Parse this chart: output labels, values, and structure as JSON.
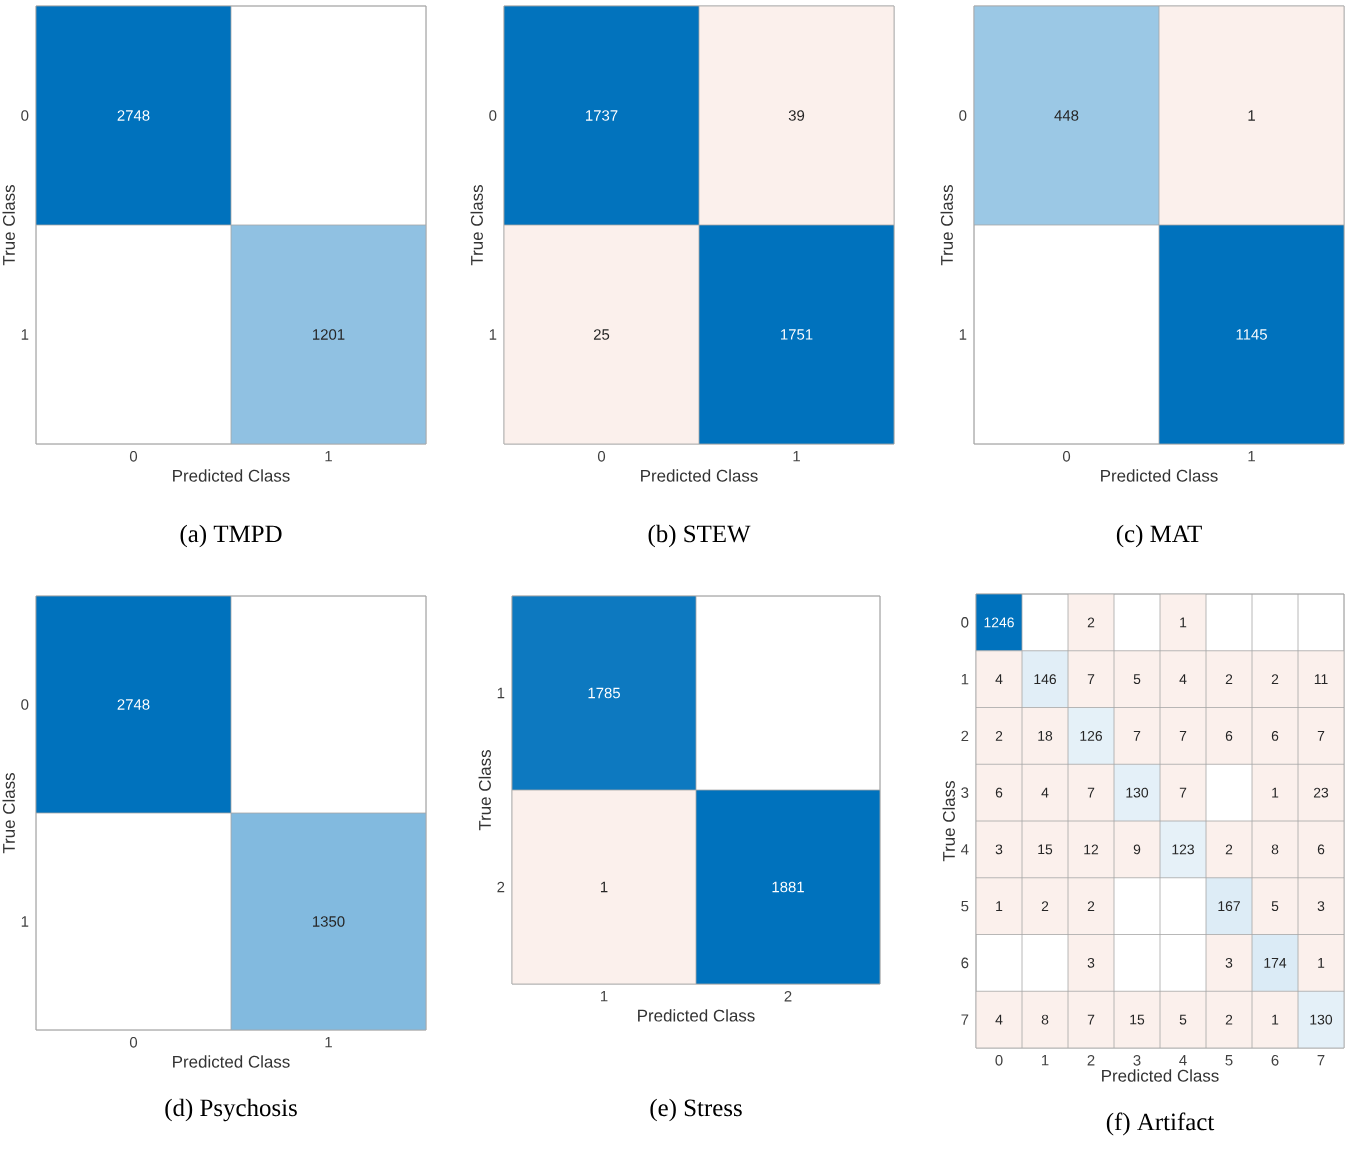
{
  "chart_data": [
    {
      "type": "heatmap",
      "categories": [
        "0",
        "1"
      ],
      "y_categories": [
        "0",
        "1"
      ],
      "xlabel": "Predicted Class",
      "ylabel": "True Class",
      "annotations": [
        "(a) TMPD"
      ],
      "data_labels": true,
      "cells": [
        [
          2748,
          null
        ],
        [
          null,
          1201
        ]
      ]
    },
    {
      "type": "heatmap",
      "categories": [
        "0",
        "1"
      ],
      "y_categories": [
        "0",
        "1"
      ],
      "xlabel": "Predicted Class",
      "ylabel": "True Class",
      "annotations": [
        "(b) STEW"
      ],
      "data_labels": true,
      "cells": [
        [
          1737,
          39
        ],
        [
          25,
          1751
        ]
      ]
    },
    {
      "type": "heatmap",
      "categories": [
        "0",
        "1"
      ],
      "y_categories": [
        "0",
        "1"
      ],
      "xlabel": "Predicted Class",
      "ylabel": "True Class",
      "annotations": [
        "(c) MAT"
      ],
      "data_labels": true,
      "cells": [
        [
          448,
          1
        ],
        [
          null,
          1145
        ]
      ]
    },
    {
      "type": "heatmap",
      "categories": [
        "0",
        "1"
      ],
      "y_categories": [
        "0",
        "1"
      ],
      "xlabel": "Predicted Class",
      "ylabel": "True Class",
      "annotations": [
        "(d) Psychosis"
      ],
      "data_labels": true,
      "cells": [
        [
          2748,
          null
        ],
        [
          null,
          1350
        ]
      ]
    },
    {
      "type": "heatmap",
      "categories": [
        "1",
        "2"
      ],
      "y_categories": [
        "1",
        "2"
      ],
      "xlabel": "Predicted Class",
      "ylabel": "True Class",
      "annotations": [
        "(e) Stress"
      ],
      "data_labels": true,
      "cells": [
        [
          1785,
          null
        ],
        [
          1,
          1881
        ]
      ]
    },
    {
      "type": "heatmap",
      "categories": [
        "0",
        "1",
        "2",
        "3",
        "4",
        "5",
        "6",
        "7"
      ],
      "y_categories": [
        "0",
        "1",
        "2",
        "3",
        "4",
        "5",
        "6",
        "7"
      ],
      "xlabel": "Predicted Class",
      "ylabel": "True Class",
      "annotations": [
        "(f) Artifact"
      ],
      "data_labels": true,
      "cells": [
        [
          1246,
          null,
          2,
          null,
          1,
          null,
          null,
          null
        ],
        [
          4,
          146,
          7,
          5,
          4,
          2,
          2,
          11
        ],
        [
          2,
          18,
          126,
          7,
          7,
          6,
          6,
          7
        ],
        [
          6,
          4,
          7,
          130,
          7,
          null,
          1,
          23
        ],
        [
          3,
          15,
          12,
          9,
          123,
          2,
          8,
          6
        ],
        [
          1,
          2,
          2,
          null,
          null,
          167,
          5,
          3
        ],
        [
          null,
          null,
          3,
          null,
          null,
          3,
          174,
          1
        ],
        [
          4,
          8,
          7,
          15,
          5,
          2,
          1,
          130
        ]
      ]
    }
  ]
}
